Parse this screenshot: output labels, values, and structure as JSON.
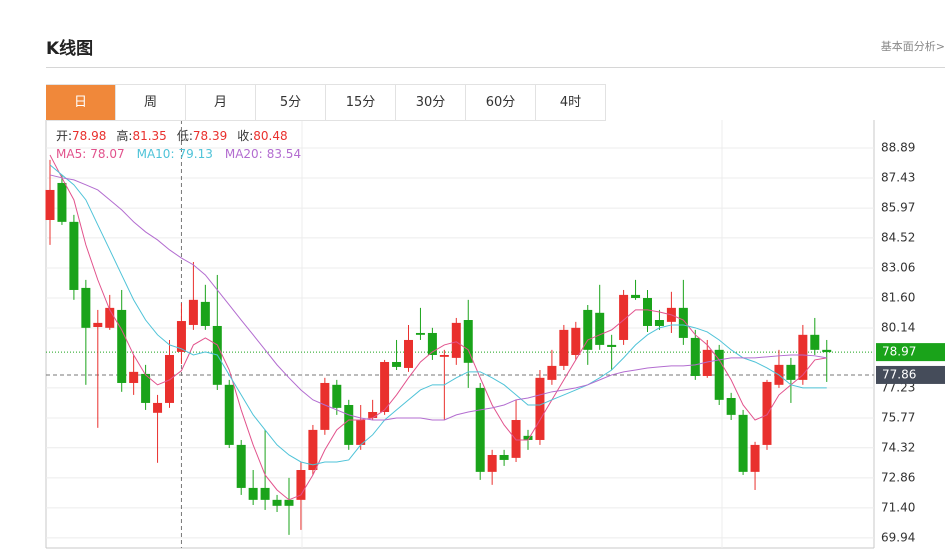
{
  "header": {
    "title": "K线图",
    "link": "基本面分析>"
  },
  "tabs": [
    "日",
    "周",
    "月",
    "5分",
    "15分",
    "30分",
    "60分",
    "4时"
  ],
  "active_tab": 0,
  "chart_data": {
    "type": "candlestick",
    "open": [
      85.39,
      87.19,
      85.3,
      82.09,
      80.19,
      80.15,
      81.02,
      77.47,
      77.91,
      76.02,
      76.5,
      78.98,
      80.29,
      81.41,
      80.24,
      77.38,
      74.46,
      72.37,
      72.37,
      71.79,
      71.79,
      71.79,
      73.24,
      75.19,
      77.38,
      76.4,
      74.46,
      75.77,
      76.06,
      78.49,
      78.2,
      79.9,
      79.9,
      78.74,
      78.69,
      80.53,
      77.23,
      73.15,
      73.97,
      73.83,
      74.9,
      74.7,
      77.62,
      78.3,
      78.83,
      81.02,
      80.88,
      79.32,
      79.56,
      81.75,
      81.6,
      80.53,
      80.44,
      81.12,
      79.66,
      77.81,
      79.08,
      76.74,
      75.92,
      73.15,
      74.46,
      77.38,
      78.35,
      77.62,
      79.81,
      79.08
    ],
    "high": [
      88.31,
      87.58,
      85.64,
      82.48,
      81.02,
      81.75,
      81.99,
      78.83,
      78.35,
      76.89,
      79.56,
      81.35,
      83.35,
      82.24,
      82.72,
      77.62,
      74.7,
      73.24,
      75.19,
      72.03,
      72.86,
      73.63,
      75.43,
      77.72,
      77.62,
      76.65,
      76.4,
      76.65,
      78.59,
      79.56,
      80.29,
      81.12,
      80.15,
      79.08,
      80.63,
      81.51,
      77.47,
      74.22,
      74.22,
      76.65,
      75.19,
      78.1,
      79.08,
      80.29,
      80.44,
      81.26,
      82.24,
      79.81,
      81.99,
      82.48,
      81.99,
      81.02,
      81.9,
      82.48,
      80.05,
      79.56,
      79.32,
      76.99,
      76.16,
      74.61,
      77.62,
      79.08,
      78.69,
      80.29,
      80.63,
      79.56
    ],
    "low": [
      84.18,
      85.15,
      81.51,
      77.38,
      75.29,
      80.05,
      77.04,
      76.89,
      76.16,
      73.59,
      76.26,
      78.39,
      80.05,
      80.05,
      77.13,
      74.31,
      72.03,
      71.54,
      71.3,
      71.2,
      70.09,
      70.33,
      73.0,
      74.95,
      75.92,
      74.22,
      74.22,
      75.67,
      75.92,
      78.1,
      78.01,
      79.56,
      78.59,
      75.67,
      78.35,
      77.23,
      72.76,
      72.52,
      73.44,
      73.63,
      74.22,
      74.46,
      77.38,
      78.1,
      78.59,
      78.35,
      79.08,
      78.1,
      79.32,
      81.51,
      79.95,
      80.05,
      79.9,
      79.32,
      77.62,
      77.72,
      76.4,
      75.67,
      73.0,
      72.27,
      74.22,
      77.23,
      76.5,
      77.38,
      78.83,
      77.52
    ],
    "close": [
      86.85,
      85.3,
      81.99,
      80.15,
      80.39,
      81.12,
      77.47,
      78.01,
      76.5,
      76.5,
      78.83,
      80.48,
      81.51,
      80.24,
      77.38,
      74.46,
      72.37,
      71.79,
      71.79,
      71.5,
      71.5,
      73.24,
      75.19,
      77.47,
      76.26,
      74.46,
      75.67,
      76.06,
      78.49,
      78.25,
      79.56,
      79.81,
      78.83,
      78.83,
      80.39,
      78.45,
      73.15,
      73.97,
      73.73,
      75.67,
      74.7,
      77.72,
      78.3,
      80.05,
      80.15,
      79.08,
      79.32,
      79.22,
      81.75,
      81.6,
      80.24,
      80.24,
      81.12,
      79.66,
      77.81,
      79.08,
      76.65,
      75.92,
      73.15,
      74.46,
      77.52,
      78.35,
      77.62,
      79.81,
      79.08,
      78.97
    ],
    "up_color": "#e9302d",
    "down_color": "#1aa31a",
    "ohlc_labels": [
      "开:",
      "高:",
      "低:",
      "收:"
    ],
    "series": [
      {
        "name": "MA5:",
        "color": "#e2538d",
        "values": [
          88.55,
          87.44,
          86.37,
          84.18,
          82.48,
          81.02,
          80.05,
          78.83,
          77.86,
          77.38,
          77.62,
          78.07,
          79.32,
          79.66,
          79.32,
          78.1,
          76.16,
          74.46,
          73.0,
          72.27,
          71.79,
          72.03,
          73.0,
          74.22,
          75.19,
          75.67,
          75.67,
          75.77,
          76.16,
          76.89,
          77.72,
          78.49,
          78.98,
          79.32,
          79.47,
          79.08,
          77.72,
          76.4,
          75.43,
          74.7,
          74.7,
          75.67,
          76.65,
          77.62,
          78.59,
          79.56,
          79.81,
          80.05,
          80.53,
          81.02,
          81.02,
          80.92,
          80.78,
          80.53,
          79.81,
          79.32,
          78.59,
          77.62,
          76.4,
          75.67,
          75.92,
          76.89,
          77.38,
          77.86,
          78.59,
          78.69
        ]
      },
      {
        "name": "MA10:",
        "color": "#4fc3d8",
        "values": [
          88.07,
          87.58,
          87.1,
          86.37,
          85.15,
          83.94,
          82.72,
          81.51,
          80.53,
          79.81,
          79.32,
          79.13,
          78.83,
          78.98,
          78.83,
          77.86,
          76.89,
          75.92,
          75.19,
          74.46,
          73.97,
          73.63,
          73.49,
          73.63,
          73.63,
          73.73,
          74.46,
          74.95,
          75.67,
          76.16,
          76.65,
          77.13,
          77.38,
          77.38,
          77.72,
          78.01,
          78.01,
          77.72,
          77.38,
          76.89,
          76.4,
          76.4,
          76.65,
          76.89,
          77.13,
          77.38,
          77.72,
          78.1,
          78.69,
          79.32,
          79.81,
          80.15,
          80.29,
          80.29,
          80.15,
          79.95,
          79.56,
          79.08,
          78.69,
          78.49,
          78.2,
          77.86,
          77.38,
          77.23,
          77.23,
          77.23
        ]
      },
      {
        "name": "MA20:",
        "color": "#b36dd0",
        "values": [
          87.58,
          87.44,
          87.34,
          87.1,
          86.85,
          86.37,
          85.88,
          85.3,
          84.81,
          84.42,
          83.94,
          83.54,
          83.21,
          82.72,
          81.99,
          81.26,
          80.53,
          79.81,
          79.08,
          78.35,
          77.72,
          77.13,
          76.65,
          76.4,
          76.16,
          75.92,
          75.77,
          75.67,
          75.67,
          75.77,
          75.77,
          75.77,
          75.67,
          75.67,
          75.92,
          76.06,
          76.16,
          76.26,
          76.4,
          76.65,
          76.74,
          76.89,
          77.04,
          77.13,
          77.23,
          77.38,
          77.62,
          77.86,
          78.01,
          78.1,
          78.2,
          78.25,
          78.3,
          78.3,
          78.35,
          78.49,
          78.59,
          78.69,
          78.69,
          78.69,
          78.74,
          78.79,
          78.83,
          78.83,
          78.79,
          78.69
        ]
      }
    ],
    "ylim": [
      69.45,
      90.25
    ],
    "yticks": [
      69.94,
      {
        "value": 71.4,
        "label": "71.40"
      },
      72.86,
      74.32,
      75.77,
      77.23,
      80.14,
      {
        "value": 81.6,
        "label": "81.60"
      },
      83.06,
      84.52,
      85.97,
      87.43,
      88.89
    ],
    "grid": true,
    "last_price": 78.97,
    "crosshair": {
      "index": 11,
      "value": 77.86
    }
  }
}
